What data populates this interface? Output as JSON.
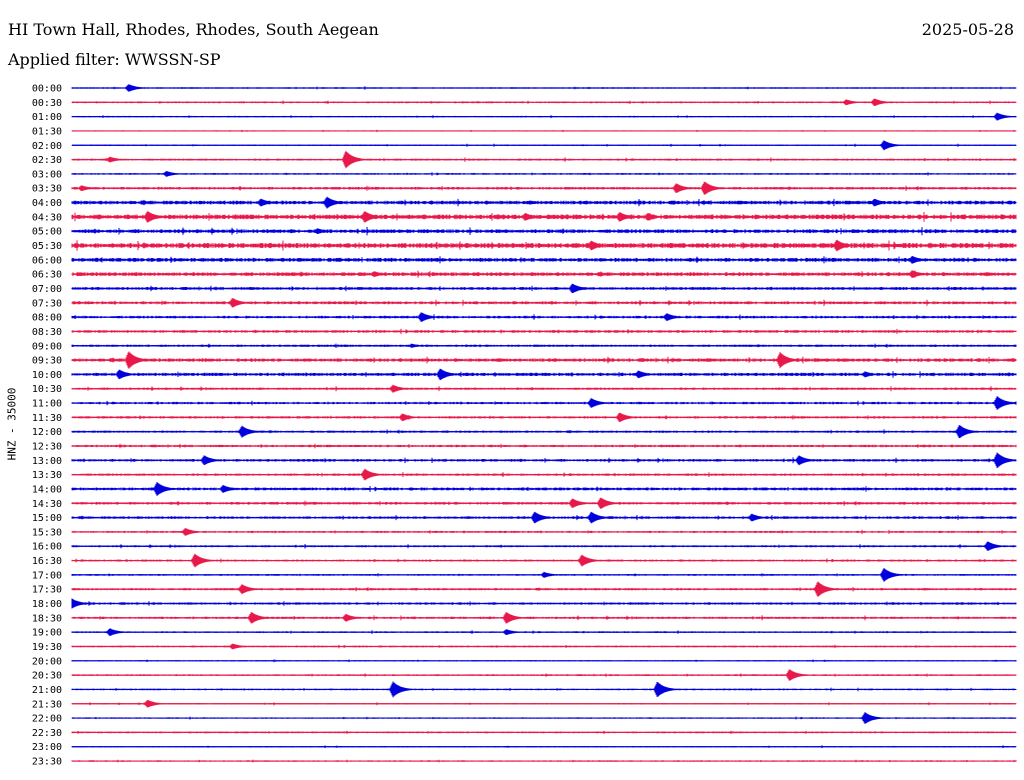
{
  "header": {
    "station": "HI Town Hall, Rhodes, Rhodes, South Aegean",
    "date": "2025-05-28",
    "filter": "Applied filter: WWSSN-SP"
  },
  "chart_data": {
    "type": "line",
    "ylabel": "HNZ - 35000",
    "colors": [
      "#0000dd",
      "#e8194a"
    ],
    "row_labels": [
      "00:00",
      "00:30",
      "01:00",
      "01:30",
      "02:00",
      "02:30",
      "03:00",
      "03:30",
      "04:00",
      "04:30",
      "05:00",
      "05:30",
      "06:00",
      "06:30",
      "07:00",
      "07:30",
      "08:00",
      "08:30",
      "09:00",
      "09:30",
      "10:00",
      "10:30",
      "11:00",
      "11:30",
      "12:00",
      "12:30",
      "13:00",
      "13:30",
      "14:00",
      "14:30",
      "15:00",
      "15:30",
      "16:00",
      "16:30",
      "17:00",
      "17:30",
      "18:00",
      "18:30",
      "19:00",
      "19:30",
      "20:00",
      "20:30",
      "21:00",
      "21:30",
      "22:00",
      "22:30",
      "23:00",
      "23:30"
    ],
    "noise_levels": [
      0.5,
      0.6,
      0.5,
      0.4,
      0.5,
      0.7,
      0.6,
      0.9,
      1.3,
      1.6,
      1.3,
      1.7,
      1.3,
      1.3,
      1.0,
      1.0,
      0.9,
      0.9,
      0.8,
      1.2,
      1.1,
      0.8,
      0.8,
      0.8,
      0.8,
      0.8,
      0.9,
      0.8,
      1.0,
      0.9,
      0.9,
      0.7,
      0.7,
      0.7,
      0.6,
      0.8,
      0.8,
      0.8,
      0.6,
      0.6,
      0.5,
      0.6,
      0.6,
      0.5,
      0.5,
      0.6,
      0.5,
      0.5
    ],
    "events": [
      [
        [
          0.06,
          4
        ]
      ],
      [
        [
          0.82,
          3
        ],
        [
          0.85,
          4
        ]
      ],
      [
        [
          0.98,
          4
        ]
      ],
      [],
      [
        [
          0.86,
          5
        ]
      ],
      [
        [
          0.04,
          3
        ],
        [
          0.29,
          9
        ]
      ],
      [
        [
          0.1,
          3
        ]
      ],
      [
        [
          0.64,
          5
        ],
        [
          0.67,
          7
        ],
        [
          0.01,
          3
        ]
      ],
      [
        [
          0.27,
          6
        ],
        [
          0.2,
          4
        ],
        [
          0.85,
          4
        ]
      ],
      [
        [
          0.08,
          6
        ],
        [
          0.31,
          6
        ],
        [
          0.48,
          4
        ],
        [
          0.58,
          5
        ],
        [
          0.61,
          4
        ]
      ],
      [
        [
          0.26,
          3
        ]
      ],
      [
        [
          0.55,
          5
        ],
        [
          0.81,
          6
        ]
      ],
      [
        [
          0.89,
          4
        ]
      ],
      [
        [
          0.89,
          4
        ],
        [
          0.32,
          3
        ]
      ],
      [
        [
          0.53,
          5
        ]
      ],
      [
        [
          0.17,
          5
        ]
      ],
      [
        [
          0.37,
          5
        ],
        [
          0.63,
          4
        ]
      ],
      [],
      [
        [
          0.36,
          2
        ]
      ],
      [
        [
          0.06,
          9
        ],
        [
          0.75,
          8
        ]
      ],
      [
        [
          0.05,
          5
        ],
        [
          0.39,
          6
        ],
        [
          0.6,
          4
        ],
        [
          0.84,
          3
        ]
      ],
      [
        [
          0.34,
          4
        ]
      ],
      [
        [
          0.55,
          5
        ],
        [
          0.98,
          7
        ]
      ],
      [
        [
          0.35,
          4
        ],
        [
          0.58,
          5
        ]
      ],
      [
        [
          0.18,
          6
        ],
        [
          0.94,
          7
        ]
      ],
      [],
      [
        [
          0.14,
          5
        ],
        [
          0.77,
          5
        ],
        [
          0.98,
          8
        ]
      ],
      [
        [
          0.31,
          6
        ]
      ],
      [
        [
          0.09,
          7
        ],
        [
          0.16,
          4
        ]
      ],
      [
        [
          0.53,
          5
        ],
        [
          0.56,
          6
        ]
      ],
      [
        [
          0.49,
          6
        ],
        [
          0.55,
          6
        ],
        [
          0.72,
          4
        ]
      ],
      [
        [
          0.12,
          4
        ]
      ],
      [
        [
          0.97,
          5
        ]
      ],
      [
        [
          0.13,
          7
        ],
        [
          0.54,
          6
        ]
      ],
      [
        [
          0.5,
          3
        ],
        [
          0.86,
          7
        ]
      ],
      [
        [
          0.18,
          5
        ],
        [
          0.79,
          8
        ]
      ],
      [
        [
          0.0,
          5
        ]
      ],
      [
        [
          0.19,
          6
        ],
        [
          0.29,
          4
        ],
        [
          0.46,
          6
        ]
      ],
      [
        [
          0.04,
          4
        ],
        [
          0.46,
          3
        ]
      ],
      [
        [
          0.17,
          3
        ]
      ],
      [],
      [
        [
          0.76,
          6
        ]
      ],
      [
        [
          0.34,
          8
        ],
        [
          0.62,
          8
        ]
      ],
      [
        [
          0.08,
          4
        ]
      ],
      [
        [
          0.84,
          6
        ]
      ],
      [],
      [],
      []
    ]
  }
}
